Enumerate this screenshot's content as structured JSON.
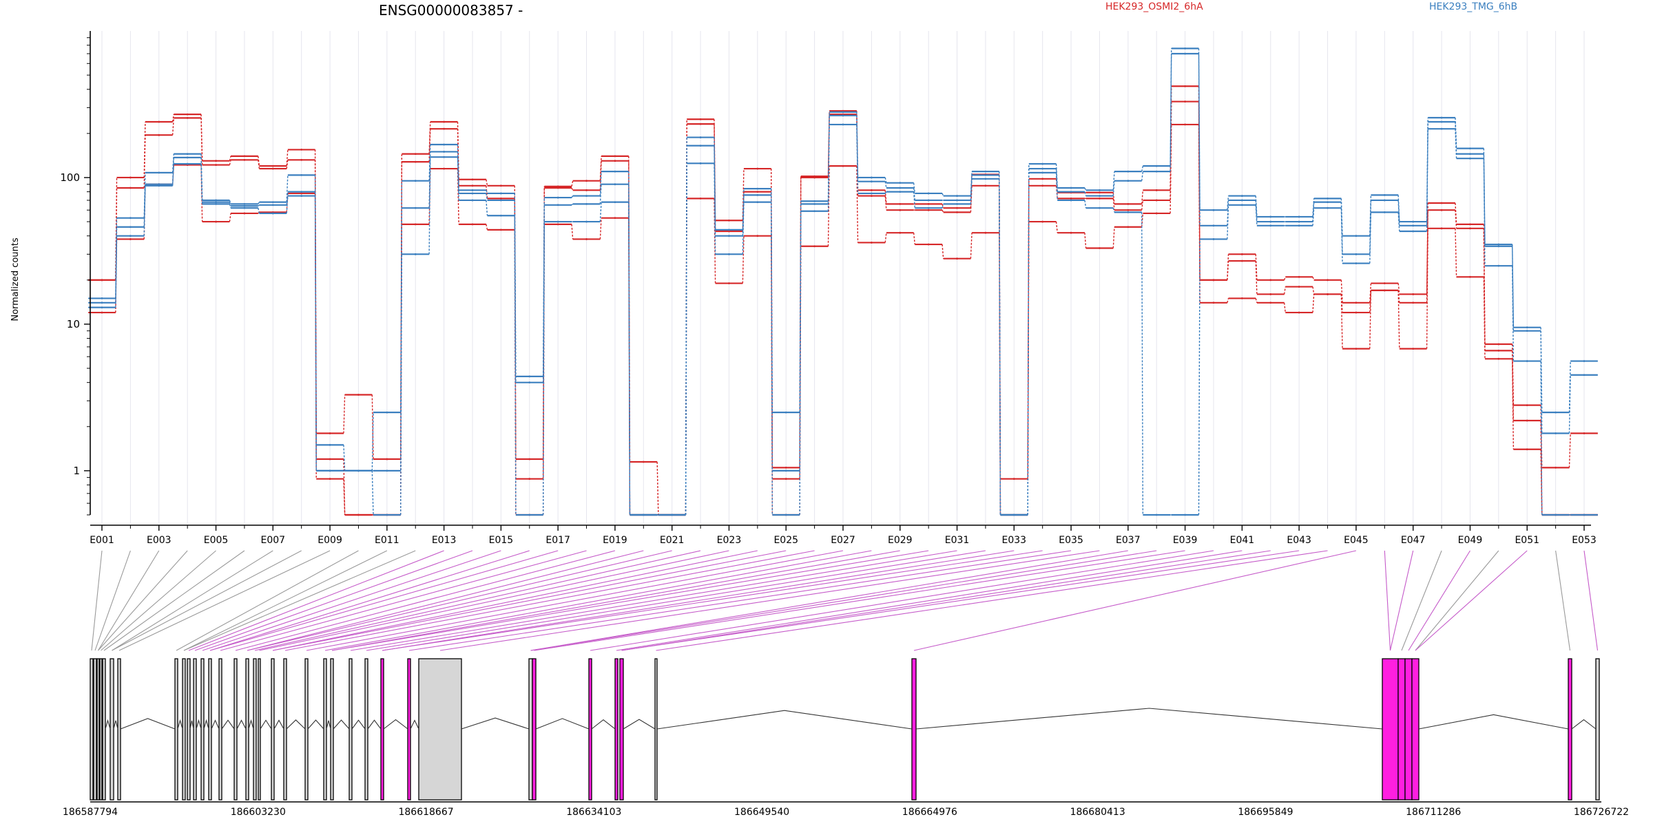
{
  "chart_data": {
    "type": "line",
    "title": "ENSG00000083857 -",
    "ylabel": "Normalized counts",
    "yscale": "log",
    "ylim": [
      0.5,
      1000
    ],
    "yticks": [
      1,
      10,
      100
    ],
    "ytick_labels": [
      "1",
      "10",
      "100"
    ],
    "categories": [
      "E001",
      "E002",
      "E003",
      "E004",
      "E005",
      "E006",
      "E007",
      "E008",
      "E009",
      "E010",
      "E011",
      "E012",
      "E013",
      "E014",
      "E015",
      "E016",
      "E017",
      "E018",
      "E019",
      "E020",
      "E021",
      "E022",
      "E023",
      "E024",
      "E025",
      "E026",
      "E027",
      "E028",
      "E029",
      "E030",
      "E031",
      "E032",
      "E033",
      "E034",
      "E035",
      "E036",
      "E037",
      "E038",
      "E039",
      "E040",
      "E041",
      "E042",
      "E043",
      "E044",
      "E045",
      "E046",
      "E047",
      "E048",
      "E049",
      "E050",
      "E051",
      "E052",
      "E053"
    ],
    "xtick_labels": [
      "E001",
      "E003",
      "E005",
      "E007",
      "E009",
      "E011",
      "E013",
      "E015",
      "E017",
      "E019",
      "E021",
      "E023",
      "E025",
      "E027",
      "E029",
      "E031",
      "E033",
      "E035",
      "E037",
      "E039",
      "E041",
      "E043",
      "E045",
      "E047",
      "E049",
      "E051",
      "E053"
    ],
    "legend": [
      {
        "name": "HEK293_OSMI2_6hA",
        "color": "#d62728"
      },
      {
        "name": "HEK293_TMG_6hB",
        "color": "#3a7fbf"
      }
    ],
    "series": [
      {
        "group": "HEK293_OSMI2_6hA",
        "color": "#d62728",
        "values": [
          20,
          100,
          240,
          270,
          130,
          140,
          120,
          155,
          1.8,
          3.3,
          1.2,
          145,
          240,
          97,
          88,
          1.2,
          87,
          95,
          140,
          1.15,
          0.5,
          250,
          51,
          115,
          1.05,
          102,
          285,
          82,
          66,
          66,
          62,
          105,
          0.88,
          98,
          79,
          79,
          66,
          82,
          420,
          20,
          30,
          20,
          21,
          20,
          14,
          19,
          16,
          67,
          48,
          7.3,
          2.8,
          1.05,
          1.8
        ]
      },
      {
        "group": "HEK293_OSMI2_6hA",
        "color": "#d62728",
        "values": [
          20,
          85,
          195,
          255,
          122,
          132,
          115,
          132,
          1.2,
          0.5,
          0.5,
          128,
          215,
          88,
          72,
          0.88,
          85,
          82,
          130,
          0.5,
          0.5,
          232,
          43,
          80,
          0.88,
          100,
          270,
          75,
          60,
          60,
          58,
          88,
          0.5,
          88,
          72,
          72,
          60,
          70,
          330,
          20,
          27,
          16,
          18,
          16,
          12,
          17,
          14,
          60,
          45,
          6.6,
          2.2,
          0.5,
          0.5
        ]
      },
      {
        "group": "HEK293_OSMI2_6hA",
        "color": "#d62728",
        "values": [
          12,
          38,
          90,
          122,
          50,
          57,
          58,
          78,
          0.88,
          0.5,
          0.5,
          48,
          115,
          48,
          44,
          0.5,
          48,
          38,
          53,
          0.5,
          0.5,
          72,
          19,
          40,
          0.5,
          34,
          120,
          36,
          42,
          35,
          28,
          42,
          0.5,
          50,
          42,
          33,
          46,
          57,
          230,
          14,
          15,
          14,
          12,
          16,
          6.8,
          17,
          6.8,
          45,
          21,
          5.8,
          1.4,
          0.5,
          0.5
        ]
      },
      {
        "group": "HEK293_TMG_6hB",
        "color": "#3a7fbf",
        "values": [
          15,
          53,
          108,
          145,
          70,
          66,
          68,
          104,
          1.5,
          1.0,
          2.5,
          95,
          168,
          82,
          78,
          4.4,
          73,
          75,
          110,
          0.5,
          0.5,
          188,
          44,
          84,
          2.5,
          69,
          280,
          100,
          92,
          78,
          75,
          110,
          0.5,
          124,
          85,
          82,
          110,
          120,
          760,
          60,
          75,
          54,
          54,
          72,
          40,
          76,
          50,
          256,
          158,
          35,
          9.5,
          2.5,
          5.6
        ]
      },
      {
        "group": "HEK293_TMG_6hB",
        "color": "#3a7fbf",
        "values": [
          14,
          46,
          90,
          137,
          68,
          64,
          65,
          80,
          1.0,
          1.0,
          1.0,
          62,
          150,
          78,
          70,
          4.0,
          65,
          66,
          90,
          0.5,
          0.5,
          165,
          40,
          76,
          1.0,
          66,
          265,
          94,
          85,
          70,
          70,
          104,
          0.5,
          115,
          80,
          75,
          95,
          110,
          700,
          47,
          70,
          50,
          50,
          68,
          30,
          70,
          47,
          240,
          145,
          34,
          9.0,
          1.8,
          4.5
        ]
      },
      {
        "group": "HEK293_TMG_6hB",
        "color": "#3a7fbf",
        "values": [
          13,
          40,
          88,
          124,
          66,
          62,
          57,
          75,
          1.0,
          1.0,
          0.5,
          30,
          138,
          70,
          55,
          0.5,
          50,
          50,
          68,
          0.5,
          0.5,
          125,
          30,
          68,
          0.5,
          59,
          230,
          78,
          80,
          62,
          66,
          98,
          0.5,
          108,
          70,
          62,
          58,
          0.5,
          0.5,
          38,
          65,
          47,
          47,
          62,
          26,
          58,
          43,
          215,
          135,
          25,
          5.6,
          0.5,
          0.5
        ]
      }
    ]
  },
  "genomic_axis": {
    "tick_labels": [
      "186587794",
      "186603230",
      "186618667",
      "186634103",
      "186649540",
      "186664976",
      "186680413",
      "186695849",
      "186711286",
      "186726722"
    ]
  }
}
